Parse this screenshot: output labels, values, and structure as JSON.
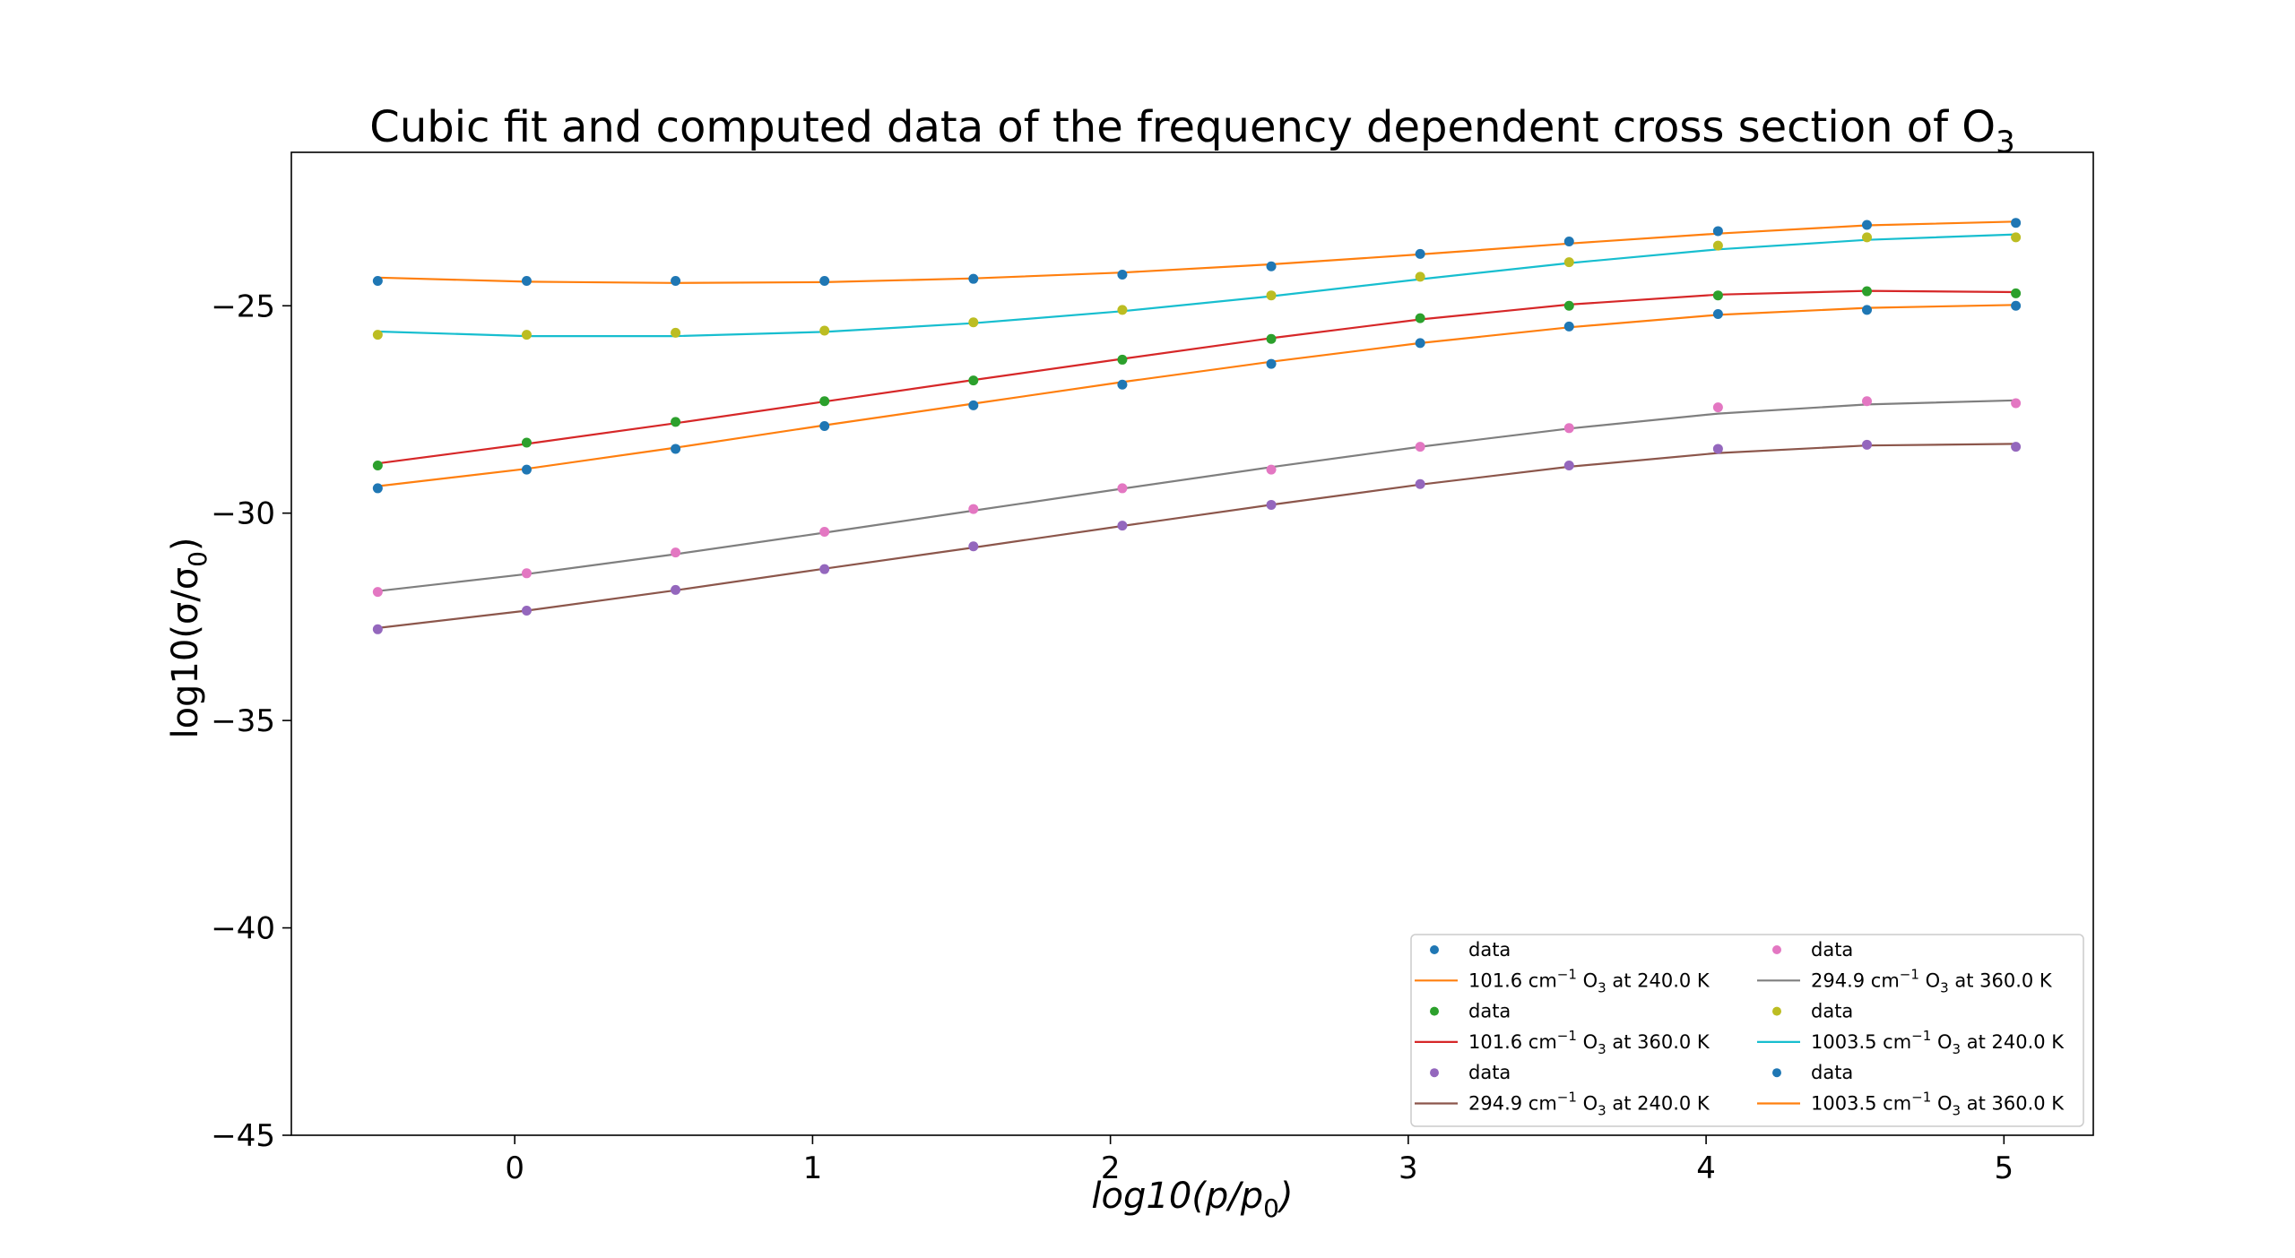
{
  "chart_data": {
    "type": "line",
    "title_main": "Cubic fit and computed data of the frequency dependent cross section of O",
    "title_sub": "3",
    "xlabel_base": "log10(",
    "xlabel_p": "p",
    "xlabel_slash": "/",
    "xlabel_p0": "p",
    "xlabel_sub": "0",
    "xlabel_close": ")",
    "ylabel_main": "log10(σ/σ",
    "ylabel_sub": "0",
    "ylabel_close": ")",
    "xlim": [
      -0.75,
      5.3
    ],
    "ylim": [
      -45,
      -21.3
    ],
    "xticks": [
      0,
      1,
      2,
      3,
      4,
      5
    ],
    "xtick_labels": [
      "0",
      "1",
      "2",
      "3",
      "4",
      "5"
    ],
    "yticks": [
      -45,
      -40,
      -35,
      -30,
      -25
    ],
    "ytick_labels": [
      "−45",
      "−40",
      "−35",
      "−30",
      "−25"
    ],
    "grid": false,
    "legend_placement": "lower-right",
    "legend_columns": 2,
    "x": [
      -0.46,
      0.04,
      0.54,
      1.04,
      1.54,
      2.04,
      2.54,
      3.04,
      3.54,
      4.04,
      4.54,
      5.04
    ],
    "series": [
      {
        "data_label": "data",
        "fit_label": " 101.6 cm",
        "fit_sup": "−1",
        "fit_mol": " O",
        "fit_sub": "3",
        "fit_rest": " at 240.0 K",
        "data_color": "#1f77b4",
        "fit_color": "#ff7f0e",
        "values": [
          -29.4,
          -28.95,
          -28.45,
          -27.9,
          -27.4,
          -26.9,
          -26.4,
          -25.9,
          -25.5,
          -25.2,
          -25.1,
          -25.0
        ],
        "fit": [
          -29.35,
          -28.93,
          -28.42,
          -27.88,
          -27.36,
          -26.84,
          -26.35,
          -25.9,
          -25.52,
          -25.22,
          -25.05,
          -24.98
        ]
      },
      {
        "data_label": "data",
        "fit_label": " 101.6 cm",
        "fit_sup": "−1",
        "fit_mol": " O",
        "fit_sub": "3",
        "fit_rest": " at 360.0 K",
        "data_color": "#2ca02c",
        "fit_color": "#d62728",
        "values": [
          -28.85,
          -28.3,
          -27.8,
          -27.3,
          -26.8,
          -26.3,
          -25.8,
          -25.3,
          -25.0,
          -24.75,
          -24.65,
          -24.7
        ],
        "fit": [
          -28.8,
          -28.33,
          -27.83,
          -27.31,
          -26.79,
          -26.28,
          -25.78,
          -25.33,
          -24.97,
          -24.73,
          -24.64,
          -24.67
        ]
      },
      {
        "data_label": "data",
        "fit_label": " 294.9 cm",
        "fit_sup": "−1",
        "fit_mol": " O",
        "fit_sub": "3",
        "fit_rest": " at 240.0 K",
        "data_color": "#9467bd",
        "fit_color": "#8c564b",
        "values": [
          -32.8,
          -32.35,
          -31.85,
          -31.35,
          -30.8,
          -30.3,
          -29.8,
          -29.3,
          -28.85,
          -28.45,
          -28.35,
          -28.4
        ],
        "fit": [
          -32.77,
          -32.35,
          -31.86,
          -31.34,
          -30.83,
          -30.31,
          -29.8,
          -29.31,
          -28.88,
          -28.55,
          -28.37,
          -28.33
        ]
      },
      {
        "data_label": "data",
        "fit_label": " 294.9 cm",
        "fit_sup": "−1",
        "fit_mol": " O",
        "fit_sub": "3",
        "fit_rest": " at 360.0 K",
        "data_color": "#e377c2",
        "fit_color": "#7f7f7f",
        "values": [
          -31.9,
          -31.45,
          -30.95,
          -30.45,
          -29.9,
          -29.4,
          -28.95,
          -28.4,
          -27.95,
          -27.45,
          -27.3,
          -27.35
        ],
        "fit": [
          -31.88,
          -31.47,
          -30.99,
          -30.47,
          -29.94,
          -29.41,
          -28.89,
          -28.4,
          -27.96,
          -27.6,
          -27.38,
          -27.28
        ]
      },
      {
        "data_label": "data",
        "fit_label": " 1003.5 cm",
        "fit_sup": "−1",
        "fit_mol": " O",
        "fit_sub": "3",
        "fit_rest": " at 240.0 K",
        "data_color": "#bcbd22",
        "fit_color": "#17becf",
        "values": [
          -25.7,
          -25.7,
          -25.65,
          -25.6,
          -25.4,
          -25.1,
          -24.75,
          -24.3,
          -23.95,
          -23.55,
          -23.35,
          -23.35
        ],
        "fit": [
          -25.62,
          -25.73,
          -25.73,
          -25.63,
          -25.42,
          -25.13,
          -24.77,
          -24.36,
          -23.97,
          -23.64,
          -23.41,
          -23.28
        ]
      },
      {
        "data_label": "data",
        "fit_label": " 1003.5 cm",
        "fit_sup": "−1",
        "fit_mol": " O",
        "fit_sub": "3",
        "fit_rest": " at 360.0 K",
        "data_color": "#1f77b4",
        "fit_color": "#ff7f0e",
        "values": [
          -24.4,
          -24.4,
          -24.4,
          -24.4,
          -24.35,
          -24.25,
          -24.05,
          -23.75,
          -23.45,
          -23.2,
          -23.05,
          -23.0
        ],
        "fit": [
          -24.32,
          -24.42,
          -24.45,
          -24.43,
          -24.34,
          -24.2,
          -24.0,
          -23.76,
          -23.5,
          -23.26,
          -23.06,
          -22.97
        ]
      }
    ]
  }
}
